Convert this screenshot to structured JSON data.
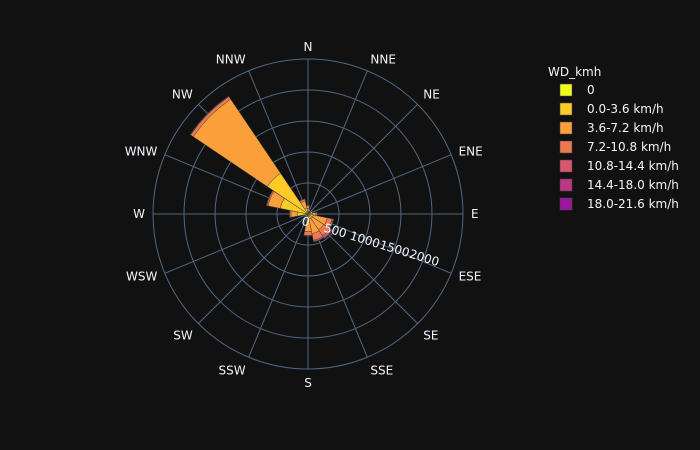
{
  "chart_data": {
    "type": "barpolar",
    "directions": [
      "N",
      "NNE",
      "NE",
      "ENE",
      "E",
      "ESE",
      "SE",
      "SSE",
      "S",
      "SSW",
      "SW",
      "WSW",
      "W",
      "WNW",
      "NW",
      "NNW"
    ],
    "radial_ticks": [
      0,
      500,
      1000,
      1500,
      2000
    ],
    "radial_range": [
      0,
      2500
    ],
    "grid": true,
    "legend_title": "WD_kmh",
    "legend_position": "top-right",
    "series": [
      {
        "name": "0",
        "color": "#f0f921",
        "values": [
          10,
          4,
          3,
          4,
          8,
          8,
          6,
          5,
          6,
          3,
          3,
          3,
          6,
          8,
          12,
          6
        ]
      },
      {
        "name": "0.0-3.6 km/h",
        "color": "#fdca26",
        "values": [
          80,
          20,
          20,
          40,
          60,
          80,
          80,
          70,
          80,
          30,
          30,
          30,
          170,
          450,
          780,
          90
        ]
      },
      {
        "name": "3.6-7.2 km/h",
        "color": "#fb9f3a",
        "values": [
          40,
          10,
          10,
          30,
          60,
          230,
          220,
          250,
          200,
          20,
          15,
          20,
          100,
          200,
          1440,
          120
        ]
      },
      {
        "name": "7.2-10.8 km/h",
        "color": "#ed7953",
        "values": [
          10,
          3,
          3,
          10,
          20,
          80,
          120,
          110,
          60,
          5,
          3,
          5,
          20,
          20,
          50,
          30
        ]
      },
      {
        "name": "10.8-14.4 km/h",
        "color": "#d8576b",
        "values": [
          2,
          1,
          1,
          2,
          4,
          20,
          40,
          20,
          10,
          1,
          1,
          1,
          3,
          4,
          8,
          4
        ]
      },
      {
        "name": "14.4-18.0 km/h",
        "color": "#bd3786",
        "values": [
          0,
          0,
          0,
          0,
          1,
          5,
          10,
          5,
          2,
          0,
          0,
          0,
          1,
          1,
          2,
          1
        ]
      },
      {
        "name": "18.0-21.6 km/h",
        "color": "#9c179e",
        "values": [
          0,
          0,
          0,
          0,
          0,
          1,
          3,
          1,
          0,
          0,
          0,
          0,
          0,
          0,
          0,
          0
        ]
      }
    ]
  }
}
